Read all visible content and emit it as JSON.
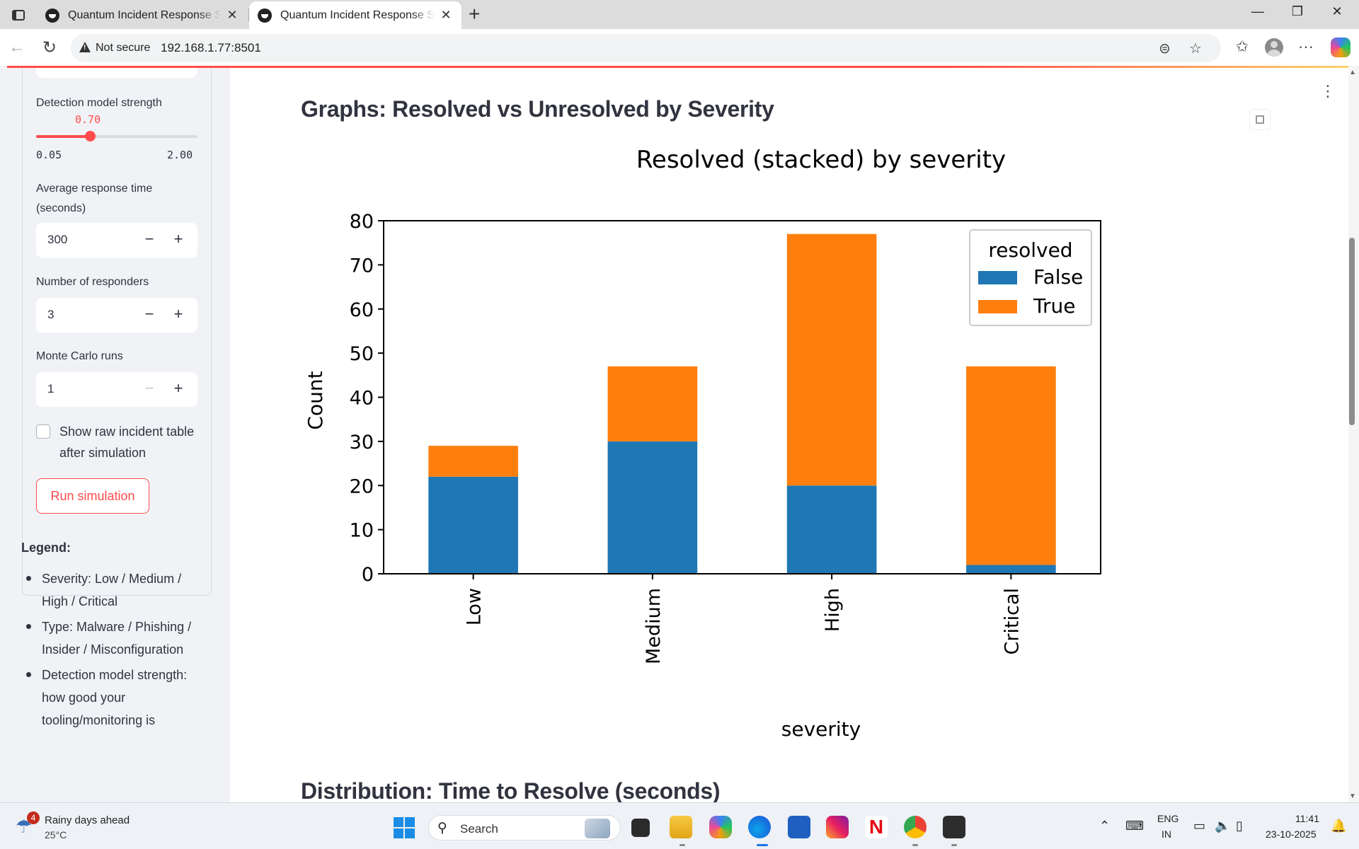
{
  "browser": {
    "tabs": [
      {
        "title": "Quantum Incident Response Simulator",
        "active": false
      },
      {
        "title": "Quantum Incident Response Simulator",
        "active": true
      }
    ],
    "security_label": "Not secure",
    "url": "192.168.1.77:8501"
  },
  "sidebar": {
    "detection": {
      "label": "Detection model strength",
      "value": 0.7,
      "value_text": "0.70",
      "min": 0.05,
      "max": 2.0,
      "min_text": "0.05",
      "max_text": "2.00"
    },
    "avg_response": {
      "label": "Average response time (seconds)",
      "value": "300"
    },
    "responders": {
      "label": "Number of responders",
      "value": "3"
    },
    "monte_carlo": {
      "label": "Monte Carlo runs",
      "value": "1"
    },
    "show_raw": {
      "label": "Show raw incident table after simulation",
      "checked": false
    },
    "run_button": "Run simulation",
    "legend_title": "Legend:",
    "legend_items": [
      "Severity: Low / Medium / High / Critical",
      "Type: Malware / Phishing / Insider / Misconfiguration",
      "Detection model strength: how good your tooling/monitoring is"
    ]
  },
  "main": {
    "graphs_heading": "Graphs: Resolved vs Unresolved by Severity",
    "dist_heading": "Distribution: Time to Resolve (seconds)"
  },
  "chart_data": {
    "type": "bar",
    "stacked": true,
    "title": "Resolved (stacked) by severity",
    "xlabel": "severity",
    "ylabel": "Count",
    "categories": [
      "Low",
      "Medium",
      "High",
      "Critical"
    ],
    "series": [
      {
        "name": "False",
        "values": [
          22,
          30,
          20,
          2
        ],
        "color": "#1f77b4"
      },
      {
        "name": "True",
        "values": [
          7,
          17,
          57,
          45
        ],
        "color": "#ff7f0e"
      }
    ],
    "ylim": [
      0,
      80
    ],
    "yticks": [
      0,
      10,
      20,
      30,
      40,
      50,
      60,
      70,
      80
    ],
    "legend_title": "resolved",
    "legend_position": "top-right",
    "grid": false
  },
  "taskbar": {
    "weather_badge": "4",
    "weather_text": "Rainy days ahead",
    "weather_temp": "25°C",
    "search_placeholder": "Search",
    "lang_1": "ENG",
    "lang_2": "IN",
    "time": "11:41",
    "date": "23-10-2025"
  }
}
